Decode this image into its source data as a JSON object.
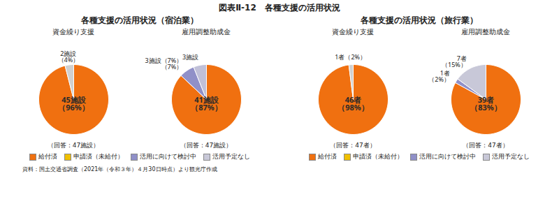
{
  "title": "図表Ⅱ-12　各種支援の活用状況",
  "caption": "資料：国土交通省調査（2021年（令和３年）４月30日時点）より観光庁作成",
  "legend_entries": [
    {
      "name": "給付済",
      "color": "#f07010"
    },
    {
      "name": "申請済（未給付）",
      "color": "#f0c000"
    },
    {
      "name": "活用に向けて検討中",
      "color": "#9090c8"
    },
    {
      "name": "活用予定なし",
      "color": "#c8c8d8"
    }
  ],
  "chart_data": [
    {
      "type": "pie",
      "group": "各種支援の活用状況（宿泊業）",
      "title": "資金繰り支援",
      "subtitle": "（回答：47施設）",
      "values": [
        96,
        4
      ],
      "colors": [
        "#f07010",
        "#d0d0d0"
      ],
      "data_labels": true,
      "value_labels": [
        "45施設\n（96%）",
        "2施設\n（4%）"
      ]
    },
    {
      "type": "pie",
      "group": "各種支援の活用状況（宿泊業）",
      "title": "雇用調整助成金",
      "subtitle": "（回答：47施設）",
      "values": [
        87,
        7,
        6
      ],
      "colors": [
        "#f07010",
        "#9090c8",
        "#c0c0d8"
      ],
      "data_labels": true,
      "value_labels": [
        "41施設\n（87%）",
        "3施設（7%）\n（7%）",
        "3施設"
      ]
    },
    {
      "type": "pie",
      "group": "各種支援の活用状況（旅行業）",
      "title": "資金繰り支援",
      "subtitle": "（回答：47者）",
      "values": [
        98,
        2
      ],
      "colors": [
        "#f07010",
        "#d0d0d0"
      ],
      "data_labels": true,
      "value_labels": [
        "46者\n（98%）",
        "1者（2%）"
      ]
    },
    {
      "type": "pie",
      "group": "各種支援の活用状況（旅行業）",
      "title": "雇用調整助成金",
      "subtitle": "（回答：47者）",
      "values": [
        83,
        2,
        15
      ],
      "colors": [
        "#f07010",
        "#9090c8",
        "#c8c8d8"
      ],
      "data_labels": true,
      "value_labels": [
        "39者\n（83%）",
        "1者\n（2%）",
        "7者\n（15%）"
      ]
    }
  ]
}
